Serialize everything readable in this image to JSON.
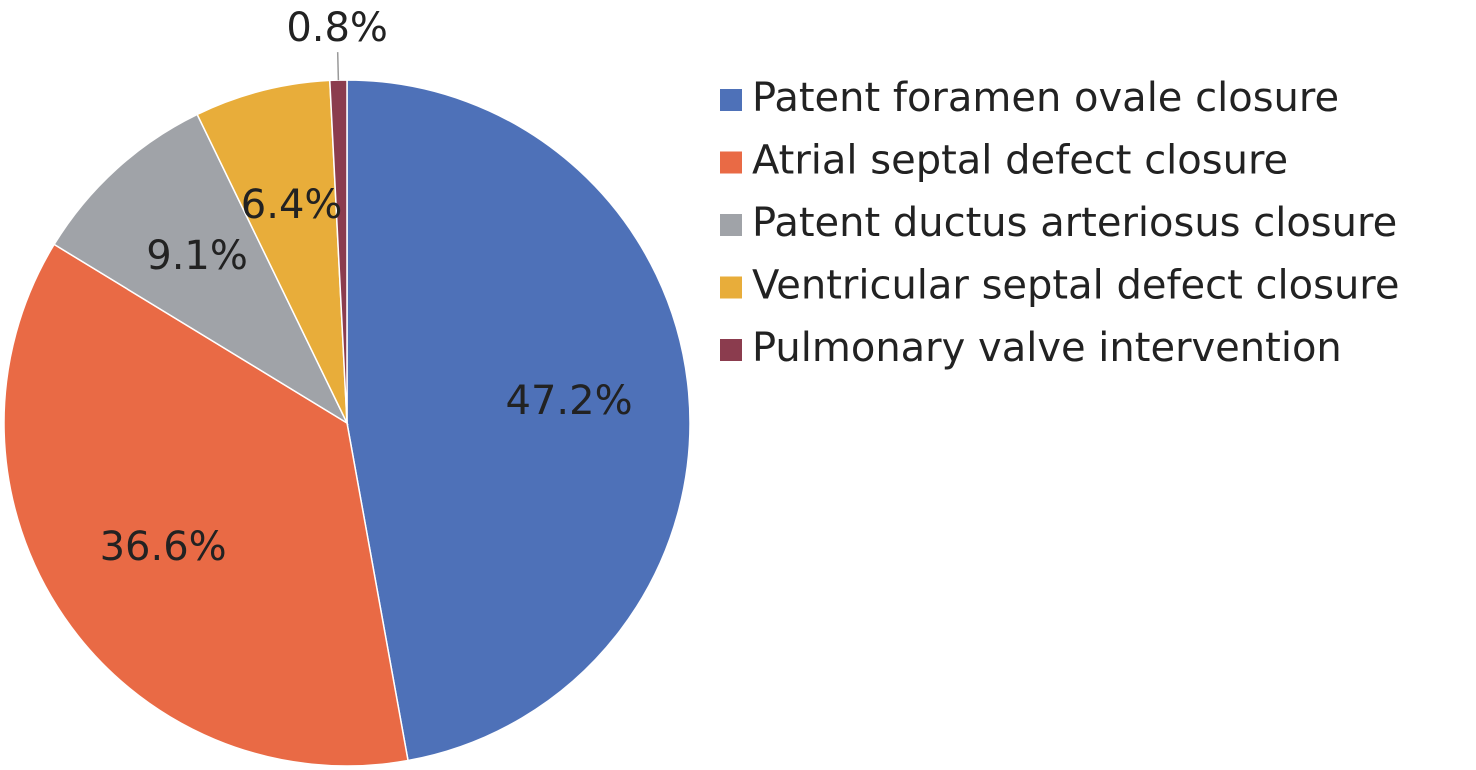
{
  "chart_data": {
    "type": "pie",
    "categories": [
      "Patent foramen ovale closure",
      "Atrial septal defect closure",
      "Patent ductus arteriosus closure",
      "Ventricular septal defect closure",
      "Pulmonary valve intervention"
    ],
    "values": [
      47.2,
      36.6,
      9.1,
      6.4,
      0.8
    ],
    "value_labels": [
      "47.2%",
      "36.6%",
      "9.1%",
      "6.4%",
      "0.8%"
    ],
    "colors": [
      "#4e71b8",
      "#e96a45",
      "#a0a3a8",
      "#e8ad3a",
      "#8b3c4e"
    ],
    "legend": "right"
  }
}
